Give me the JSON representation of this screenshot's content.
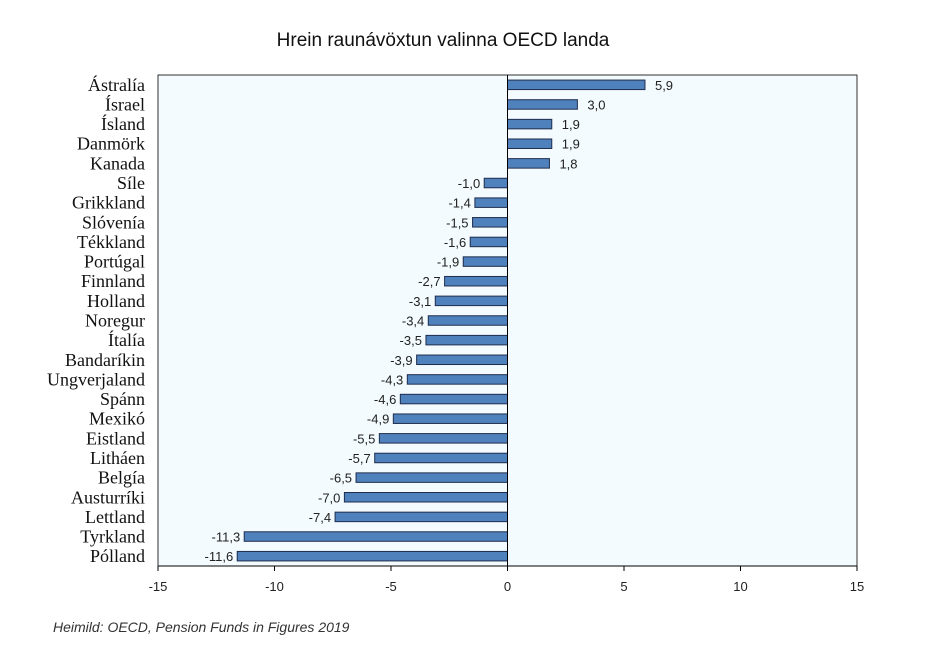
{
  "chart_data": {
    "type": "bar",
    "orientation": "horizontal",
    "title": "Hrein raunávöxtun valinna OECD landa",
    "categories": [
      "Ástralía",
      "Ísrael",
      "Ísland",
      "Danmörk",
      "Kanada",
      "Síle",
      "Grikkland",
      "Slóvenía",
      "Tékkland",
      "Portúgal",
      "Finnland",
      "Holland",
      "Noregur",
      "Ítalía",
      "Bandaríkin",
      "Ungverjaland",
      "Spánn",
      "Mexikó",
      "Eistland",
      "Litháen",
      "Belgía",
      "Austurríki",
      "Lettland",
      "Tyrkland",
      "Pólland"
    ],
    "values": [
      5.9,
      3.0,
      1.9,
      1.9,
      1.8,
      -1.0,
      -1.4,
      -1.5,
      -1.6,
      -1.9,
      -2.7,
      -3.1,
      -3.4,
      -3.5,
      -3.9,
      -4.3,
      -4.6,
      -4.9,
      -5.5,
      -5.7,
      -6.5,
      -7.0,
      -7.4,
      -11.3,
      -11.6
    ],
    "value_labels": [
      "5,9",
      "3,0",
      "1,9",
      "1,9",
      "1,8",
      "-1,0",
      "-1,4",
      "-1,5",
      "-1,6",
      "-1,9",
      "-2,7",
      "-3,1",
      "-3,4",
      "-3,5",
      "-3,9",
      "-4,3",
      "-4,6",
      "-4,9",
      "-5,5",
      "-5,7",
      "-6,5",
      "-7,0",
      "-7,4",
      "-11,3",
      "-11,6"
    ],
    "xlim": [
      -15,
      15
    ],
    "xticks": [
      -15,
      -10,
      -5,
      0,
      5,
      10,
      15
    ],
    "xtick_labels": [
      "-15",
      "-10",
      "-5",
      "0",
      "5",
      "10",
      "15"
    ],
    "grid": false,
    "colors": {
      "bar": "#4f81bd",
      "bar_edge": "#1f2d4d",
      "plot_bg": "#f3fbfe"
    }
  },
  "source": "Heimild: OECD, Pension Funds in Figures 2019"
}
